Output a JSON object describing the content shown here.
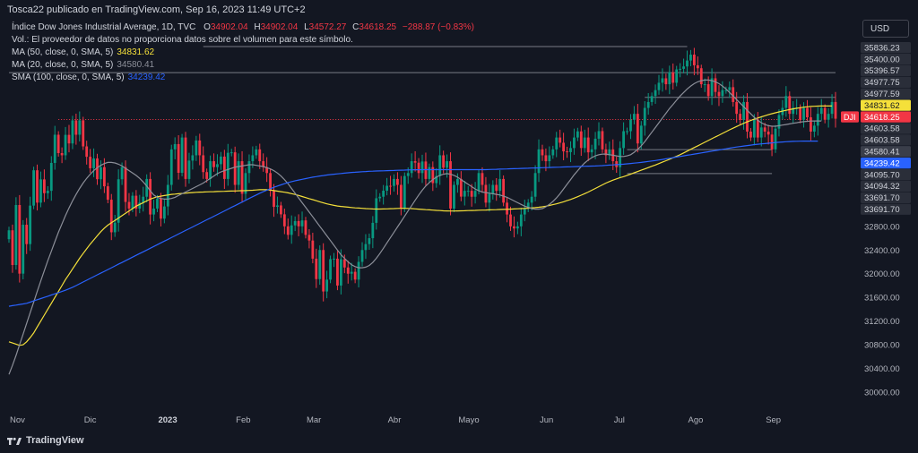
{
  "header": {
    "published": "Tosca22 publicado en TradingView.com, Sep 16, 2023 11:49 UTC+2",
    "currency": "USD"
  },
  "legend": {
    "title": "Índice Dow Jones Industrial Average, 1D, TVC",
    "o_key": "O",
    "o_val": "34902.04",
    "h_key": "H",
    "h_val": "34902.04",
    "l_key": "L",
    "l_val": "34572.27",
    "c_key": "C",
    "c_val": "34618.25",
    "change": "−288.87 (−0.83%)",
    "volume_note": "Vol.: El proveedor de datos no proporciona datos sobre el volumen para este símbolo.",
    "ma50_label": "MA (50, close, 0, SMA, 5)",
    "ma50_val": "34831.62",
    "ma20_label": "MA (20, close, 0, SMA, 5)",
    "ma20_val": "34580.41",
    "sma100_label": "SMA (100, close, 0, SMA, 5)",
    "sma100_val": "34239.42"
  },
  "brand": {
    "name": "TradingView"
  },
  "colors": {
    "background": "#131722",
    "up": "#089981",
    "down": "#f23645",
    "ma50": "#f5e03a",
    "ma20": "#8c8f99",
    "sma100": "#2962ff",
    "grid": "#1e222d"
  },
  "chart_data": {
    "type": "candlestick",
    "symbol_tag": "DJI",
    "ylim": [
      29700,
      36100
    ],
    "y_ticks": [
      30000,
      30400,
      30800,
      31200,
      31600,
      32000,
      32400,
      32800
    ],
    "x_ticks": [
      "Nov",
      "Dic",
      "2023",
      "Feb",
      "Mar",
      "Abr",
      "Mayo",
      "Jun",
      "Jul",
      "Ago",
      "Sep"
    ],
    "x_tick_index": [
      0,
      21,
      42,
      64,
      84,
      107,
      127,
      150,
      171,
      192,
      214
    ],
    "price_labels": [
      {
        "text": "35836.23",
        "value": 35836.23,
        "style": "plain"
      },
      {
        "text": "35400.00",
        "value": 35400.0,
        "style": "plain"
      },
      {
        "text": "35396.57",
        "value": 35396.57,
        "style": "plain"
      },
      {
        "text": "34977.75",
        "value": 34977.75,
        "style": "plain"
      },
      {
        "text": "34977.59",
        "value": 34977.59,
        "style": "plain"
      },
      {
        "text": "34831.62",
        "value": 34831.62,
        "style": "ma50"
      },
      {
        "text": "34618.25",
        "value": 34618.25,
        "style": "last"
      },
      {
        "text": "34603.58",
        "value": 34603.58,
        "style": "plain"
      },
      {
        "text": "34603.58",
        "value": 34603.58,
        "style": "plain"
      },
      {
        "text": "34580.41",
        "value": 34580.41,
        "style": "ma20"
      },
      {
        "text": "34239.42",
        "value": 34239.42,
        "style": "sma100"
      },
      {
        "text": "34095.70",
        "value": 34095.7,
        "style": "plain"
      },
      {
        "text": "34094.32",
        "value": 34094.32,
        "style": "plain"
      },
      {
        "text": "33691.70",
        "value": 33691.7,
        "style": "plain"
      },
      {
        "text": "33691.70",
        "value": 33691.7,
        "style": "plain"
      }
    ],
    "hlines": [
      {
        "value": 35836.23,
        "from_index": 55,
        "to_index": 192
      },
      {
        "value": 35396.57,
        "from_index": 0,
        "to_index": 234
      },
      {
        "value": 34977.59,
        "from_index": 180,
        "to_index": 234
      },
      {
        "value": 34603.58,
        "from_index": 14,
        "to_index": 226,
        "style": "dotted-red"
      },
      {
        "value": 34095.7,
        "from_index": 175,
        "to_index": 216
      },
      {
        "value": 33691.7,
        "from_index": 175,
        "to_index": 216
      }
    ],
    "close": [
      32733,
      32147,
      33160,
      32001,
      32827,
      32500,
      33150,
      33747,
      33200,
      33593,
      33360,
      33400,
      33871,
      34347,
      34037,
      34000,
      34345,
      34200,
      34589,
      34347,
      34590,
      34150,
      33975,
      33781,
      33947,
      33596,
      33800,
      33476,
      33250,
      32700,
      32861,
      33595,
      33800,
      33212,
      33100,
      33317,
      33100,
      33200,
      33300,
      33600,
      33000,
      33100,
      33269,
      32930,
      33136,
      33500,
      34100,
      34189,
      33704,
      34300,
      33600,
      33910,
      34000,
      34250,
      34000,
      33716,
      33600,
      33900,
      33800,
      33850,
      33978,
      33600,
      34042,
      34050,
      33500,
      33900,
      33350,
      33700,
      33900,
      34000,
      34100,
      33900,
      33800,
      33700,
      33400,
      33129,
      33153,
      33003,
      32800,
      32656,
      32816,
      32889,
      32800,
      32900,
      32656,
      32560,
      32254,
      31909,
      32400,
      31700,
      31900,
      32246,
      32254,
      31800,
      32244,
      32105,
      32000,
      32032,
      31900,
      32200,
      32400,
      32500,
      32600,
      32859,
      33274,
      33300,
      33402,
      33485,
      33482,
      33600,
      33500,
      33100,
      33650,
      33700,
      33900,
      33875,
      33700,
      33895,
      33600,
      33800,
      33530,
      33650,
      34000,
      33790,
      33900,
      33100,
      33500,
      33600,
      33302,
      33400,
      33400,
      33300,
      33400,
      33700,
      33500,
      33200,
      33348,
      33500,
      33400,
      33600,
      33200,
      33000,
      32800,
      32764,
      32800,
      33000,
      33100,
      33200,
      33300,
      33700,
      34100,
      34000,
      33900,
      34000,
      34100,
      34300,
      34212,
      34066,
      34053,
      34122,
      34300,
      34404,
      34123,
      34300,
      34050,
      34100,
      34280,
      34408,
      34100,
      34000,
      34100,
      33900,
      33800,
      34122,
      34407,
      34407,
      34600,
      34700,
      34200,
      34500,
      34800,
      34900,
      35000,
      35100,
      35225,
      35300,
      35200,
      35400,
      35225,
      35450,
      35460,
      35500,
      35600,
      35700,
      35520,
      35470,
      35200,
      35200,
      35000,
      35300,
      35070,
      35000,
      35100,
      35100,
      35150,
      34900,
      34700,
      34600,
      34900,
      34400,
      34300,
      34600,
      34300,
      34470,
      34400,
      34350,
      34100,
      34450,
      34680,
      34800,
      35000,
      34700,
      34800,
      34800,
      34600,
      34800,
      34641,
      34400,
      34500,
      34700,
      34800,
      34600,
      34700,
      34900,
      34618
    ],
    "series": [
      {
        "name": "MA (50, close, 0, SMA, 5)",
        "values": [
          30850,
          30830,
          30810,
          30790,
          30800,
          30850,
          30920,
          31000,
          31100,
          31200,
          31300,
          31400,
          31500,
          31600,
          31700,
          31800,
          31900,
          31990,
          32080,
          32170,
          32260,
          32340,
          32420,
          32500,
          32570,
          32640,
          32710,
          32770,
          32820,
          32860,
          32900,
          32940,
          32980,
          33020,
          33060,
          33100,
          33140,
          33170,
          33200,
          33230,
          33260,
          33280,
          33300,
          33310,
          33320,
          33330,
          33340,
          33345,
          33350,
          33355,
          33360,
          33365,
          33370,
          33374,
          33378,
          33380,
          33382,
          33384,
          33386,
          33388,
          33390,
          33392,
          33394,
          33396,
          33398,
          33400,
          33402,
          33404,
          33406,
          33410,
          33414,
          33418,
          33420,
          33418,
          33412,
          33404,
          33395,
          33386,
          33376,
          33365,
          33352,
          33338,
          33322,
          33304,
          33286,
          33268,
          33250,
          33232,
          33214,
          33196,
          33180,
          33166,
          33154,
          33144,
          33136,
          33130,
          33124,
          33118,
          33112,
          33108,
          33104,
          33100,
          33096,
          33094,
          33092,
          33092,
          33093,
          33095,
          33098,
          33100,
          33102,
          33104,
          33104,
          33102,
          33099,
          33095,
          33090,
          33086,
          33082,
          33078,
          33074,
          33070,
          33066,
          33062,
          33060,
          33058,
          33058,
          33060,
          33062,
          33064,
          33066,
          33068,
          33070,
          33072,
          33074,
          33076,
          33078,
          33080,
          33082,
          33084,
          33086,
          33088,
          33090,
          33093,
          33096,
          33099,
          33102,
          33106,
          33111,
          33116,
          33122,
          33130,
          33140,
          33152,
          33166,
          33180,
          33196,
          33214,
          33234,
          33254,
          33276,
          33300,
          33326,
          33352,
          33380,
          33410,
          33440,
          33470,
          33500,
          33530,
          33556,
          33580,
          33602,
          33622,
          33640,
          33660,
          33682,
          33704,
          33726,
          33748,
          33770,
          33792,
          33814,
          33836,
          33860,
          33884,
          33908,
          33932,
          33958,
          33984,
          34010,
          34040,
          34070,
          34100,
          34130,
          34160,
          34190,
          34220,
          34250,
          34280,
          34310,
          34340,
          34370,
          34400,
          34430,
          34458,
          34486,
          34514,
          34540,
          34564,
          34588,
          34610,
          34630,
          34650,
          34668,
          34686,
          34702,
          34718,
          34732,
          34746,
          34760,
          34772,
          34784,
          34794,
          34804,
          34812,
          34818,
          34824,
          34828,
          34831,
          34832,
          34832,
          34832,
          34832
        ]
      },
      {
        "name": "MA (20, close, 0, SMA, 5)",
        "values": [
          30300,
          30450,
          30620,
          30800,
          30980,
          31160,
          31340,
          31520,
          31700,
          31880,
          32050,
          32220,
          32380,
          32540,
          32700,
          32840,
          32980,
          33110,
          33230,
          33340,
          33440,
          33530,
          33610,
          33680,
          33740,
          33790,
          33830,
          33860,
          33880,
          33880,
          33870,
          33850,
          33820,
          33780,
          33740,
          33700,
          33660,
          33610,
          33550,
          33480,
          33400,
          33330,
          33290,
          33270,
          33260,
          33260,
          33270,
          33290,
          33320,
          33350,
          33380,
          33410,
          33440,
          33470,
          33500,
          33530,
          33570,
          33610,
          33650,
          33690,
          33720,
          33740,
          33760,
          33780,
          33800,
          33810,
          33820,
          33830,
          33840,
          33840,
          33830,
          33820,
          33810,
          33790,
          33770,
          33740,
          33700,
          33650,
          33590,
          33520,
          33440,
          33360,
          33280,
          33200,
          33120,
          33040,
          32960,
          32880,
          32800,
          32720,
          32640,
          32560,
          32480,
          32400,
          32320,
          32260,
          32200,
          32150,
          32120,
          32100,
          32100,
          32110,
          32140,
          32190,
          32260,
          32340,
          32430,
          32520,
          32610,
          32700,
          32790,
          32880,
          32970,
          33060,
          33150,
          33240,
          33330,
          33410,
          33480,
          33540,
          33590,
          33630,
          33660,
          33680,
          33690,
          33680,
          33660,
          33630,
          33590,
          33550,
          33510,
          33470,
          33430,
          33400,
          33380,
          33370,
          33360,
          33350,
          33340,
          33330,
          33310,
          33290,
          33260,
          33230,
          33200,
          33170,
          33140,
          33120,
          33100,
          33090,
          33090,
          33100,
          33130,
          33170,
          33220,
          33280,
          33350,
          33430,
          33510,
          33590,
          33670,
          33740,
          33810,
          33870,
          33920,
          33960,
          33990,
          34010,
          34020,
          34020,
          34010,
          34000,
          33990,
          33980,
          33980,
          33990,
          34010,
          34050,
          34100,
          34160,
          34230,
          34310,
          34390,
          34470,
          34550,
          34630,
          34710,
          34790,
          34860,
          34930,
          35000,
          35060,
          35120,
          35170,
          35210,
          35240,
          35260,
          35270,
          35270,
          35260,
          35240,
          35210,
          35170,
          35120,
          35060,
          35000,
          34940,
          34880,
          34820,
          34760,
          34700,
          34640,
          34590,
          34550,
          34520,
          34500,
          34490,
          34490,
          34500,
          34510,
          34520,
          34530,
          34540,
          34550,
          34560,
          34568,
          34574,
          34578,
          34580,
          34580,
          34580
        ]
      },
      {
        "name": "SMA (100, close, 0, SMA, 5)",
        "values": [
          31450,
          31460,
          31470,
          31480,
          31490,
          31500,
          31520,
          31540,
          31560,
          31580,
          31600,
          31620,
          31640,
          31660,
          31680,
          31700,
          31720,
          31745,
          31770,
          31800,
          31830,
          31860,
          31890,
          31920,
          31950,
          31980,
          32010,
          32040,
          32070,
          32100,
          32130,
          32160,
          32190,
          32220,
          32250,
          32280,
          32310,
          32340,
          32370,
          32400,
          32430,
          32460,
          32490,
          32520,
          32550,
          32580,
          32610,
          32640,
          32670,
          32700,
          32730,
          32760,
          32790,
          32820,
          32850,
          32880,
          32910,
          32940,
          32970,
          33000,
          33030,
          33060,
          33090,
          33120,
          33150,
          33180,
          33210,
          33240,
          33270,
          33300,
          33330,
          33360,
          33385,
          33410,
          33435,
          33460,
          33480,
          33500,
          33520,
          33540,
          33555,
          33570,
          33582,
          33594,
          33606,
          33618,
          33630,
          33640,
          33650,
          33658,
          33666,
          33674,
          33680,
          33686,
          33692,
          33698,
          33704,
          33710,
          33714,
          33718,
          33722,
          33726,
          33730,
          33732,
          33734,
          33736,
          33738,
          33740,
          33742,
          33744,
          33746,
          33748,
          33750,
          33752,
          33754,
          33755,
          33756,
          33757,
          33758,
          33758,
          33758,
          33758,
          33758,
          33758,
          33758,
          33758,
          33758,
          33758,
          33758,
          33758,
          33758,
          33758,
          33758,
          33758,
          33758,
          33758,
          33760,
          33762,
          33764,
          33766,
          33768,
          33770,
          33772,
          33774,
          33776,
          33778,
          33780,
          33782,
          33784,
          33786,
          33788,
          33790,
          33792,
          33794,
          33796,
          33798,
          33800,
          33802,
          33804,
          33806,
          33808,
          33810,
          33812,
          33814,
          33816,
          33818,
          33820,
          33822,
          33826,
          33830,
          33834,
          33838,
          33842,
          33846,
          33850,
          33856,
          33862,
          33868,
          33874,
          33880,
          33888,
          33896,
          33904,
          33912,
          33920,
          33930,
          33940,
          33950,
          33960,
          33970,
          33980,
          33990,
          34000,
          34010,
          34020,
          34030,
          34040,
          34050,
          34060,
          34070,
          34080,
          34090,
          34100,
          34110,
          34120,
          34130,
          34140,
          34148,
          34156,
          34164,
          34172,
          34180,
          34186,
          34192,
          34198,
          34204,
          34210,
          34215,
          34220,
          34225,
          34229,
          34232,
          34235,
          34237,
          34238,
          34239,
          34239,
          34239,
          34239,
          34239
        ]
      }
    ]
  }
}
